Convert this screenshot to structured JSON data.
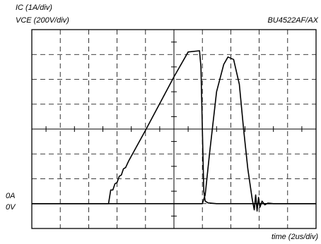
{
  "chart_data": {
    "type": "line",
    "ylabel_ic": "IC (1A/div)",
    "ylabel_vce": "VCE (200V/div)",
    "model": "BU4522AF/AX",
    "ic_zero_label": "0A",
    "vce_zero_label": "0V",
    "xlabel": "time (2us/div)",
    "grid": true,
    "xlim": [
      0,
      20
    ],
    "ylim_div": [
      -1,
      7
    ],
    "series": [
      {
        "name": "IC",
        "x": [
          0,
          2,
          4,
          5.4,
          5.55,
          5.7,
          5.85,
          6.0,
          6.15,
          6.3,
          6.45,
          6.6,
          6.8,
          8,
          10,
          11,
          11.8,
          11.9,
          12.0,
          12.1,
          12.2,
          12.4,
          13,
          15,
          20
        ],
        "y": [
          0,
          0,
          0,
          0,
          0.55,
          0.55,
          0.8,
          0.85,
          1.1,
          1.15,
          1.4,
          1.45,
          1.7,
          2.95,
          5.1,
          6.1,
          6.15,
          5.5,
          3.0,
          0.5,
          0.1,
          0.03,
          0,
          0,
          0
        ]
      },
      {
        "name": "VCE",
        "x": [
          0,
          5,
          10,
          12.0,
          12.2,
          12.5,
          13.0,
          13.5,
          13.8,
          14.2,
          14.6,
          14.9,
          15.2,
          15.5,
          15.65,
          15.75,
          15.85,
          15.95,
          16.05,
          16.2,
          16.4,
          16.6,
          17,
          20
        ],
        "y": [
          0,
          0,
          0,
          0,
          0.35,
          2.0,
          4.5,
          5.6,
          5.9,
          5.8,
          4.8,
          3.0,
          1.4,
          0.2,
          -0.25,
          0.35,
          -0.3,
          0.25,
          -0.15,
          0.1,
          -0.05,
          0.02,
          0,
          0
        ]
      }
    ]
  }
}
